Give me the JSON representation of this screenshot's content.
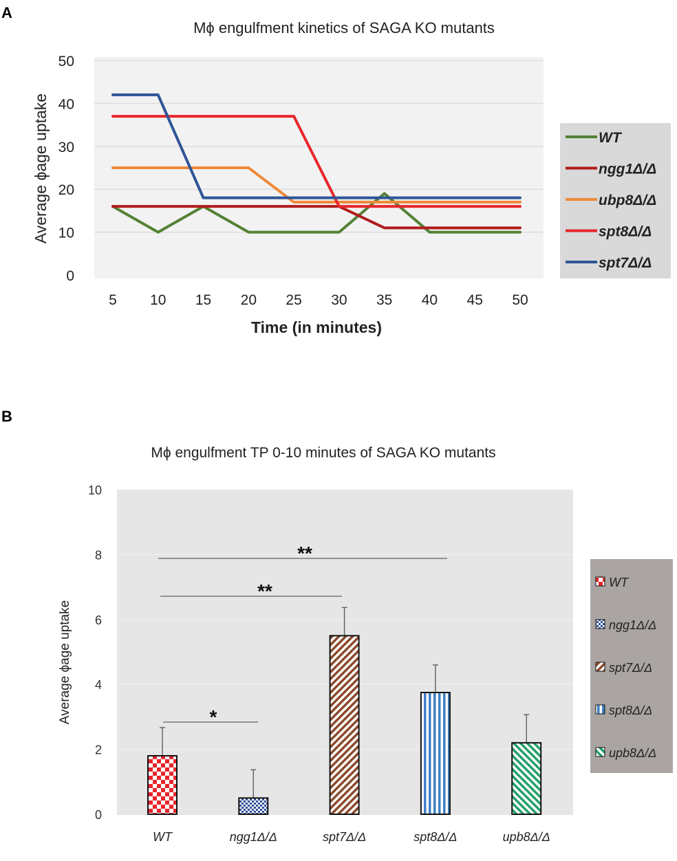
{
  "chart_data": [
    {
      "panel": "A",
      "type": "line",
      "title": "Mϕ engulfment kinetics of SAGA KO mutants",
      "xlabel": "Time (in minutes)",
      "ylabel": "Average ϕage uptake",
      "x": [
        5,
        10,
        15,
        20,
        25,
        30,
        35,
        40,
        45,
        50
      ],
      "ylim": [
        0,
        50
      ],
      "yticks": [
        0,
        10,
        20,
        30,
        40,
        50
      ],
      "grid": true,
      "legend_position": "right",
      "series": [
        {
          "name": "WT",
          "color": "#538135",
          "values": [
            16,
            10,
            16,
            10,
            10,
            10,
            19,
            10,
            10,
            10
          ]
        },
        {
          "name": "ngg1Δ/Δ",
          "color": "#b01c1c",
          "values": [
            16,
            16,
            16,
            16,
            16,
            16,
            11,
            11,
            11,
            11
          ]
        },
        {
          "name": "ubp8Δ/Δ",
          "color": "#ed8a3a",
          "values": [
            25,
            25,
            25,
            25,
            17,
            17,
            17,
            17,
            17,
            17
          ]
        },
        {
          "name": "spt8Δ/Δ",
          "color": "#e8262b",
          "values": [
            37,
            37,
            37,
            37,
            37,
            16,
            16,
            16,
            16,
            16
          ]
        },
        {
          "name": "spt7Δ/Δ",
          "color": "#2f5597",
          "values": [
            42,
            42,
            18,
            18,
            18,
            18,
            18,
            18,
            18,
            18
          ]
        }
      ]
    },
    {
      "panel": "B",
      "type": "bar",
      "title": "Mϕ engulfment TP 0-10 minutes of SAGA KO mutants",
      "xlabel": "",
      "ylabel": "Average ϕage uptake",
      "categories": [
        "WT",
        "ngg1Δ/Δ",
        "spt7Δ/Δ",
        "spt8Δ/Δ",
        "upb8Δ/Δ"
      ],
      "values": [
        1.8,
        0.5,
        5.5,
        3.75,
        2.2
      ],
      "error_upper": [
        0.87,
        0.87,
        0.87,
        0.85,
        0.87
      ],
      "colors": [
        "#e8262b",
        "#2f4f9a",
        "#8b4a2b",
        "#3d7fc4",
        "#23a06a"
      ],
      "patterns": [
        "checker",
        "small-checker",
        "diagonal",
        "vertical",
        "diagonal"
      ],
      "ylim": [
        0,
        10
      ],
      "yticks": [
        0,
        2,
        4,
        6,
        8,
        10
      ],
      "grid": true,
      "legend_position": "right",
      "legend": [
        "WT",
        "ngg1Δ/Δ",
        "spt7Δ/Δ",
        "spt8Δ/Δ",
        "upb8Δ/Δ"
      ],
      "significance": [
        {
          "from": "WT",
          "to": "ngg1Δ/Δ",
          "label": "*"
        },
        {
          "from": "WT",
          "to": "spt7Δ/Δ",
          "label": "**"
        },
        {
          "from": "WT",
          "to": "spt8Δ/Δ",
          "label": "**"
        }
      ]
    }
  ],
  "panel_labels": [
    "A",
    "B"
  ]
}
